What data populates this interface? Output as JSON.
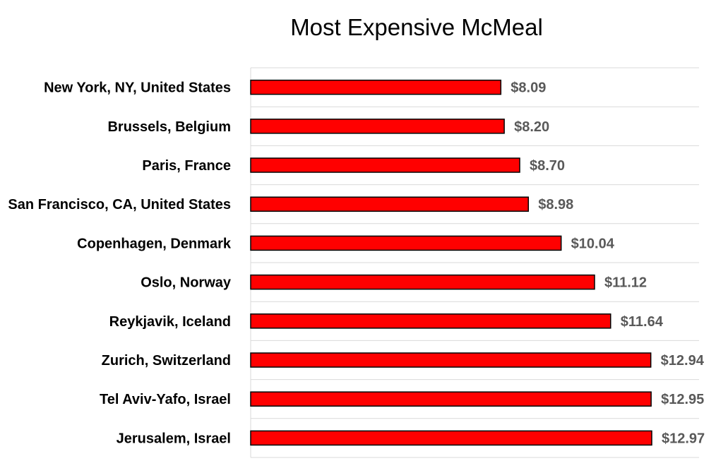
{
  "chart_data": {
    "type": "bar",
    "orientation": "horizontal",
    "title": "Most Expensive McMeal",
    "xlabel": "",
    "ylabel": "",
    "categories": [
      "New York, NY, United States",
      "Brussels, Belgium",
      "Paris, France",
      "San Francisco, CA, United States",
      "Copenhagen, Denmark",
      "Oslo, Norway",
      "Reykjavik, Iceland",
      "Zurich, Switzerland",
      "Tel Aviv-Yafo, Israel",
      "Jerusalem, Israel"
    ],
    "values": [
      8.09,
      8.2,
      8.7,
      8.98,
      10.04,
      11.12,
      11.64,
      12.94,
      12.95,
      12.97
    ],
    "value_labels": [
      "$8.09",
      "$8.20",
      "$8.70",
      "$8.98",
      "$10.04",
      "$11.12",
      "$11.64",
      "$12.94",
      "$12.95",
      "$12.97"
    ],
    "xlim": [
      0,
      14.5
    ],
    "grid": true,
    "legend": "none",
    "bar_color": "#ff0000",
    "bar_edge_color": "#000000"
  }
}
